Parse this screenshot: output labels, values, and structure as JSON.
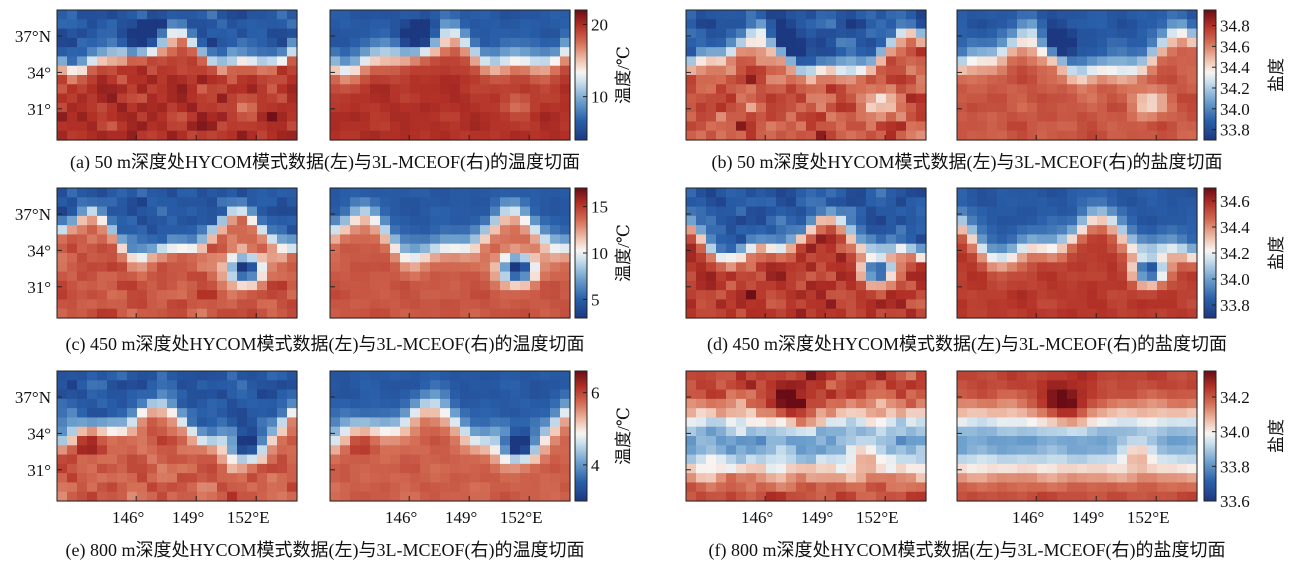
{
  "figure": {
    "lat_labels": [
      "37°N",
      "34°",
      "31°"
    ],
    "lon_labels": [
      "146°",
      "149°",
      "152°E"
    ]
  },
  "chart_data": [
    {
      "id": "a",
      "type": "heatmap",
      "variable": "temperature",
      "depth_m": 50,
      "caption": "(a) 50 m深度处HYCOM模式数据(左)与3L-MCEOF(右)的温度切面",
      "colorbar": {
        "label": "温度/℃",
        "ticks": [
          10,
          20
        ],
        "ticklabels": [
          "10",
          "20"
        ],
        "range": [
          4,
          22
        ]
      },
      "warm_level": 0.8,
      "front_y": 0.32,
      "front_amp": 0.12,
      "noise": 0.09,
      "eddies": [
        {
          "x": 0.4,
          "y": 0.22,
          "r": 0.12,
          "dv": -0.55
        },
        {
          "x": 0.78,
          "y": 0.72,
          "r": 0.1,
          "dv": -0.12
        }
      ]
    },
    {
      "id": "b",
      "type": "heatmap",
      "variable": "salinity",
      "depth_m": 50,
      "caption": "(b) 50 m深度处HYCOM模式数据(左)与3L-MCEOF(右)的盐度切面",
      "colorbar": {
        "label": "盐度",
        "ticks": [
          33.8,
          34.0,
          34.2,
          34.4,
          34.6,
          34.8
        ],
        "ticklabels": [
          "33.8",
          "34.0",
          "34.2",
          "34.4",
          "34.6",
          "34.8"
        ],
        "range": [
          33.7,
          34.95
        ]
      },
      "warm_level": 0.72,
      "front_y": 0.36,
      "front_amp": 0.14,
      "noise": 0.12,
      "eddies": [
        {
          "x": 0.4,
          "y": 0.26,
          "r": 0.11,
          "dv": -0.45
        },
        {
          "x": 0.8,
          "y": 0.72,
          "r": 0.1,
          "dv": -0.25
        }
      ]
    },
    {
      "id": "c",
      "type": "heatmap",
      "variable": "temperature",
      "depth_m": 450,
      "caption": "(c) 450 m深度处HYCOM模式数据(左)与3L-MCEOF(右)的温度切面",
      "colorbar": {
        "label": "温度/℃",
        "ticks": [
          5,
          10,
          15
        ],
        "ticklabels": [
          "5",
          "10",
          "15"
        ],
        "range": [
          3,
          17
        ]
      },
      "warm_level": 0.72,
      "front_y": 0.38,
      "front_amp": 0.14,
      "noise": 0.08,
      "eddies": [
        {
          "x": 0.78,
          "y": 0.62,
          "r": 0.11,
          "dv": -0.85
        }
      ]
    },
    {
      "id": "d",
      "type": "heatmap",
      "variable": "salinity",
      "depth_m": 450,
      "caption": "(d) 450 m深度处HYCOM模式数据(左)与3L-MCEOF(右)的盐度切面",
      "colorbar": {
        "label": "盐度",
        "ticks": [
          33.8,
          34.0,
          34.2,
          34.4,
          34.6
        ],
        "ticklabels": [
          "33.8",
          "34.0",
          "34.2",
          "34.4",
          "34.6"
        ],
        "range": [
          33.7,
          34.7
        ]
      },
      "warm_level": 0.78,
      "front_y": 0.4,
      "front_amp": 0.13,
      "noise": 0.1,
      "eddies": [
        {
          "x": 0.8,
          "y": 0.64,
          "r": 0.1,
          "dv": -0.75
        }
      ]
    },
    {
      "id": "e",
      "type": "heatmap",
      "variable": "temperature",
      "depth_m": 800,
      "caption": "(e) 800 m深度处HYCOM模式数据(左)与3L-MCEOF(右)的温度切面",
      "colorbar": {
        "label": "温度/℃",
        "ticks": [
          4,
          6
        ],
        "ticklabels": [
          "4",
          "6"
        ],
        "range": [
          3,
          6.6
        ]
      },
      "warm_level": 0.7,
      "front_y": 0.42,
      "front_amp": 0.12,
      "noise": 0.09,
      "eddies": [
        {
          "x": 0.78,
          "y": 0.58,
          "r": 0.11,
          "dv": -0.8
        },
        {
          "x": 0.08,
          "y": 0.5,
          "r": 0.14,
          "dv": 0.25
        }
      ]
    },
    {
      "id": "f",
      "type": "heatmap",
      "variable": "salinity",
      "depth_m": 800,
      "caption": "(f) 800 m深度处HYCOM模式数据(左)与3L-MCEOF(右)的盐度切面",
      "colorbar": {
        "label": "盐度",
        "ticks": [
          33.6,
          33.8,
          34.0,
          34.2
        ],
        "ticklabels": [
          "33.6",
          "33.8",
          "34.0",
          "34.2"
        ],
        "range": [
          33.6,
          34.35
        ]
      },
      "warm_level": 0.55,
      "front_y": 0.45,
      "front_amp": 0.1,
      "noise": 0.1,
      "invert": true,
      "eddies": [
        {
          "x": 0.76,
          "y": 0.62,
          "r": 0.1,
          "dv": 0.3
        },
        {
          "x": 0.45,
          "y": 0.28,
          "r": 0.16,
          "dv": 0.3
        }
      ]
    }
  ]
}
